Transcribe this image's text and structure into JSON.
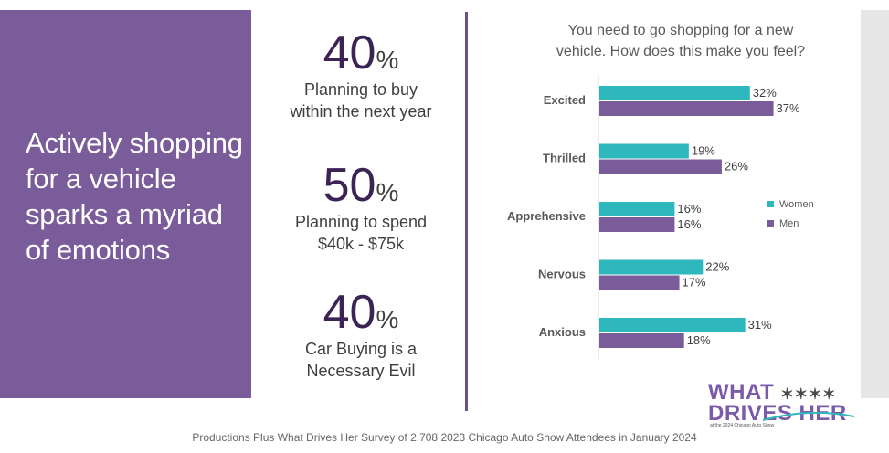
{
  "headline": "Actively shopping for a vehicle sparks a myriad of emotions",
  "stats": [
    {
      "number": "40",
      "unit": "%",
      "desc_line1": "Planning to buy",
      "desc_line2": "within the next year"
    },
    {
      "number": "50",
      "unit": "%",
      "desc_line1": "Planning to spend",
      "desc_line2": "$40k - $75k"
    },
    {
      "number": "40",
      "unit": "%",
      "desc_line1": "Car Buying is a",
      "desc_line2": "Necessary Evil"
    }
  ],
  "chart_title_line1": "You need to go shopping for a new",
  "chart_title_line2": "vehicle.  How does this make you feel?",
  "chart_data": {
    "type": "bar",
    "orientation": "horizontal",
    "title": "You need to go shopping for a new vehicle.  How does this make you feel?",
    "categories": [
      "Excited",
      "Thrilled",
      "Apprehensive",
      "Nervous",
      "Anxious"
    ],
    "series": [
      {
        "name": "Women",
        "color": "#2eb8bd",
        "values": [
          32,
          19,
          16,
          22,
          31
        ]
      },
      {
        "name": "Men",
        "color": "#7a5c9a",
        "values": [
          37,
          26,
          16,
          17,
          18
        ]
      }
    ],
    "value_suffix": "%",
    "xlim": [
      0,
      40
    ],
    "legend_position": "right",
    "grid": false
  },
  "footer": "Productions Plus What Drives Her Survey of 2,708 2023 Chicago Auto Show Attendees in January 2024",
  "logo": {
    "line1": "WHAT",
    "stars": "✶✶✶✶",
    "line2": "DRIVES HER",
    "subtitle": "at the 2024 Chicago Auto Show"
  }
}
